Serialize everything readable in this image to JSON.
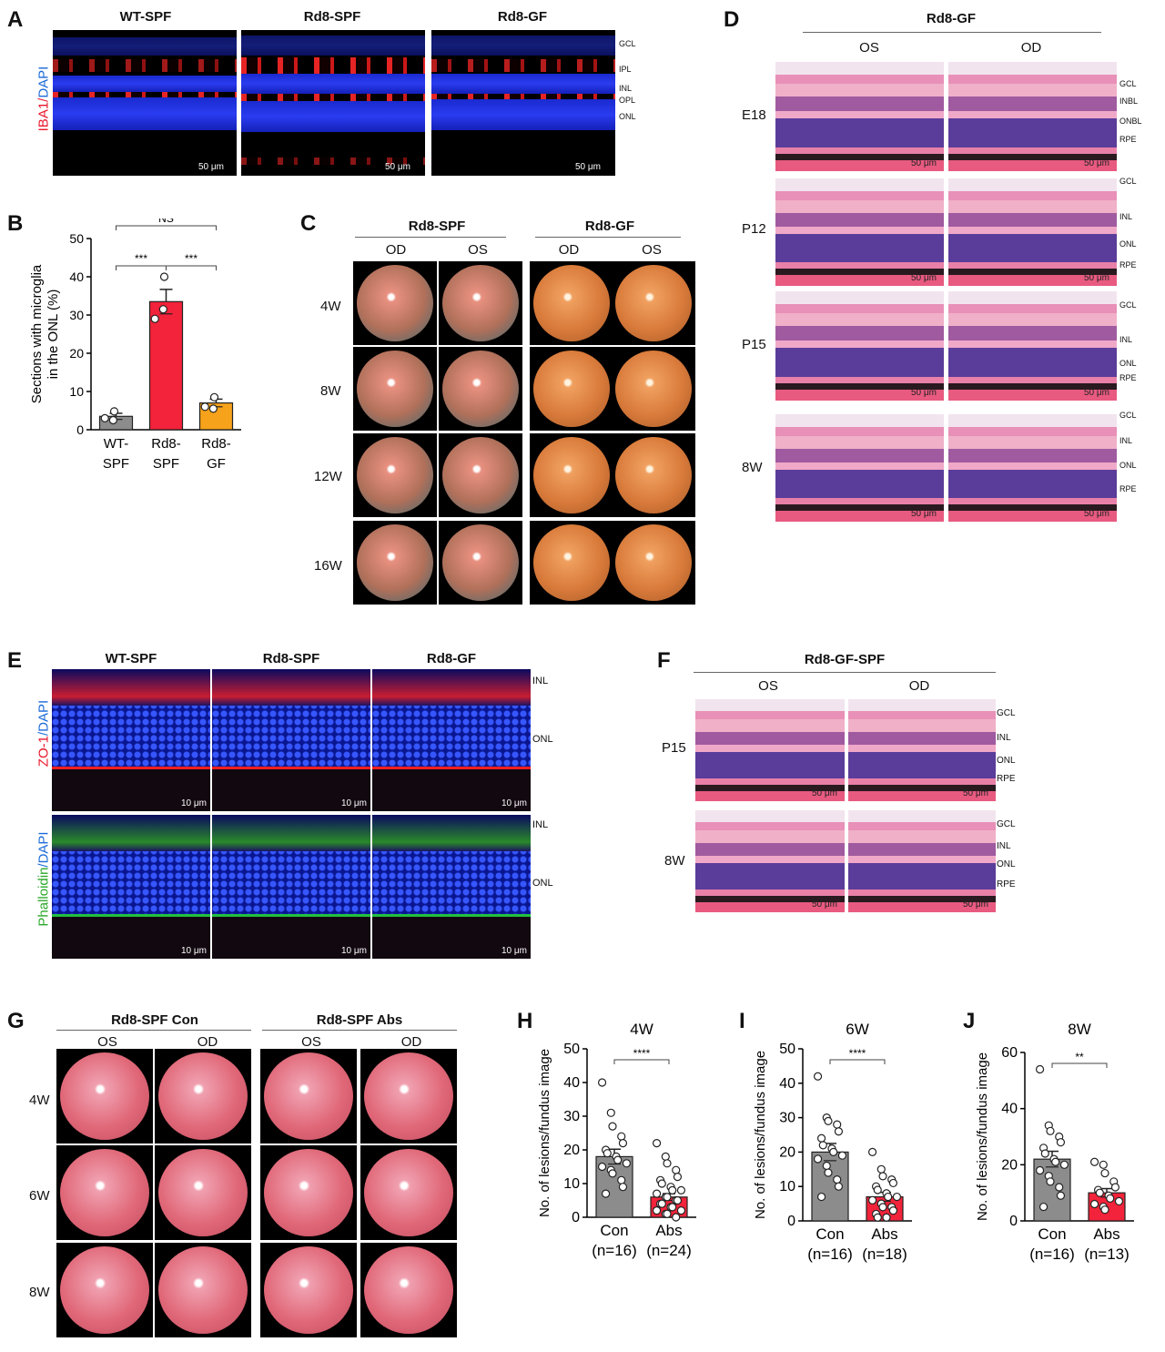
{
  "panels": {
    "A": {
      "label": "A",
      "columns": [
        "WT-SPF",
        "Rd8-SPF",
        "Rd8-GF"
      ],
      "stain_red": "IBA1",
      "stain_sep": "/",
      "stain_blue": "DAPI",
      "layers": [
        "GCL",
        "IPL",
        "INL",
        "OPL",
        "ONL"
      ],
      "scale": "50 μm"
    },
    "B": {
      "label": "B"
    },
    "C": {
      "label": "C",
      "groups": [
        "Rd8-SPF",
        "Rd8-GF"
      ],
      "eyes": [
        "OD",
        "OS",
        "OD",
        "OS"
      ],
      "rows": [
        "4W",
        "8W",
        "12W",
        "16W"
      ]
    },
    "D": {
      "label": "D",
      "group": "Rd8-GF",
      "eyes": [
        "OS",
        "OD"
      ],
      "rows": [
        "E18",
        "P12",
        "P15",
        "8W"
      ],
      "layers": [
        [
          "GCL",
          "INBL",
          "ONBL",
          "RPE"
        ],
        [
          "GCL",
          "INL",
          "ONL",
          "RPE"
        ],
        [
          "GCL",
          "INL",
          "ONL",
          "RPE"
        ],
        [
          "GCL",
          "INL",
          "ONL",
          "RPE"
        ]
      ],
      "scale": "50 μm"
    },
    "E": {
      "label": "E",
      "columns": [
        "WT-SPF",
        "Rd8-SPF",
        "Rd8-GF"
      ],
      "stain1_main": "ZO-1",
      "stain1_blue": "/DAPI",
      "stain2_main": "Phalloidin",
      "stain2_blue": "/DAPI",
      "layers": [
        "INL",
        "ONL"
      ],
      "scale": "10 μm"
    },
    "F": {
      "label": "F",
      "group": "Rd8-GF-SPF",
      "eyes": [
        "OS",
        "OD"
      ],
      "rows": [
        "P15",
        "8W"
      ],
      "layers": [
        "GCL",
        "INL",
        "ONL",
        "RPE"
      ],
      "scale": "50 μm"
    },
    "G": {
      "label": "G",
      "groups": [
        "Rd8-SPF Con",
        "Rd8-SPF Abs"
      ],
      "eyes": [
        "OS",
        "OD",
        "OS",
        "OD"
      ],
      "rows": [
        "4W",
        "6W",
        "8W"
      ]
    },
    "H": {
      "label": "H"
    },
    "I": {
      "label": "I"
    },
    "J": {
      "label": "J"
    }
  },
  "chart_data": [
    {
      "id": "B",
      "type": "bar",
      "ylabel": "Sections with microglia in the ONL (%)",
      "ylabel_lines": [
        "Sections with microglia",
        "in the ONL (%)"
      ],
      "categories": [
        [
          "WT-",
          "SPF"
        ],
        [
          "Rd8-",
          "SPF"
        ],
        [
          "Rd8-",
          "GF"
        ]
      ],
      "values": [
        3.5,
        33.5,
        7
      ],
      "errors": [
        0.8,
        3.2,
        1.0
      ],
      "points": [
        [
          3.0,
          2.5,
          4.8
        ],
        [
          29,
          31.5,
          40
        ],
        [
          6,
          5.5,
          8.5
        ]
      ],
      "colors": [
        "#8c8c8c",
        "#f2233a",
        "#f7a21b"
      ],
      "ylim": [
        0,
        50
      ],
      "yticks": [
        0,
        10,
        20,
        30,
        40,
        50
      ],
      "brackets": [
        {
          "from": 0,
          "to": 2,
          "label": "NS",
          "level": 1
        },
        {
          "from": 0,
          "to": 1,
          "label": "***",
          "level": 0
        },
        {
          "from": 1,
          "to": 2,
          "label": "***",
          "level": 0
        }
      ]
    },
    {
      "id": "H",
      "type": "bar",
      "title": "4W",
      "ylabel": "No. of lesions/fundus image",
      "categories": [
        [
          "Con",
          "(n=16)"
        ],
        [
          "Abs",
          "(n=24)"
        ]
      ],
      "values": [
        18,
        6
      ],
      "errors": [
        2.2,
        1.0
      ],
      "points": [
        [
          40,
          31,
          27,
          24,
          22,
          20,
          19,
          18,
          17,
          16,
          15,
          14,
          13,
          11,
          9,
          7
        ],
        [
          22,
          18,
          16,
          14,
          12,
          11,
          10,
          9,
          8,
          8,
          7,
          6,
          6,
          5,
          5,
          4,
          4,
          3,
          3,
          2,
          2,
          1,
          1,
          0
        ]
      ],
      "colors": [
        "#8c8c8c",
        "#f2233a"
      ],
      "ylim": [
        0,
        50
      ],
      "yticks": [
        0,
        10,
        20,
        30,
        40,
        50
      ],
      "sig": "****"
    },
    {
      "id": "I",
      "type": "bar",
      "title": "6W",
      "ylabel": "No. of lesions/fundus image",
      "categories": [
        [
          "Con",
          "(n=16)"
        ],
        [
          "Abs",
          "(n=18)"
        ]
      ],
      "values": [
        20,
        7
      ],
      "errors": [
        2.5,
        1.3
      ],
      "points": [
        [
          42,
          30,
          29,
          28,
          26,
          24,
          22,
          21,
          20,
          19,
          18,
          16,
          14,
          12,
          10,
          7
        ],
        [
          20,
          15,
          13,
          12,
          11,
          10,
          9,
          8,
          7,
          7,
          6,
          5,
          4,
          4,
          3,
          2,
          1,
          1
        ]
      ],
      "colors": [
        "#8c8c8c",
        "#f2233a"
      ],
      "ylim": [
        0,
        50
      ],
      "yticks": [
        0,
        10,
        20,
        30,
        40,
        50
      ],
      "sig": "****"
    },
    {
      "id": "J",
      "type": "bar",
      "title": "8W",
      "ylabel": "No. of lesions/fundus image",
      "categories": [
        [
          "Con",
          "(n=16)"
        ],
        [
          "Abs",
          "(n=13)"
        ]
      ],
      "values": [
        22,
        10
      ],
      "errors": [
        2.8,
        1.5
      ],
      "points": [
        [
          54,
          34,
          32,
          30,
          28,
          26,
          24,
          22,
          21,
          20,
          18,
          16,
          14,
          12,
          9,
          5
        ],
        [
          21,
          20,
          17,
          14,
          12,
          11,
          10,
          9,
          8,
          7,
          6,
          5,
          4
        ]
      ],
      "colors": [
        "#8c8c8c",
        "#f2233a"
      ],
      "ylim": [
        0,
        60
      ],
      "yticks": [
        0,
        20,
        40,
        60
      ],
      "sig": "**"
    }
  ]
}
